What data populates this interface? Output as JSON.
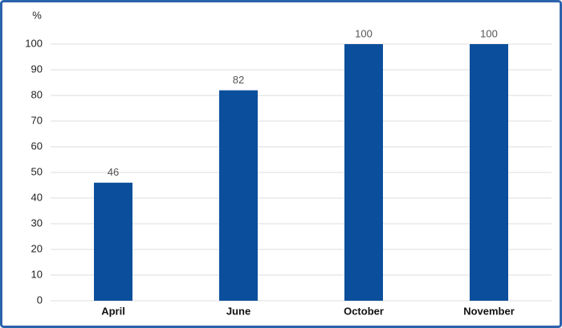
{
  "chart_data": {
    "type": "bar",
    "y_axis_label": "%",
    "categories": [
      "April",
      "June",
      "October",
      "November"
    ],
    "values": [
      46,
      82,
      100,
      100
    ],
    "color": "#0b4f9c",
    "ylim": [
      0,
      100
    ],
    "yticks": [
      0,
      10,
      20,
      30,
      40,
      50,
      60,
      70,
      80,
      90,
      100
    ],
    "grid": true
  }
}
